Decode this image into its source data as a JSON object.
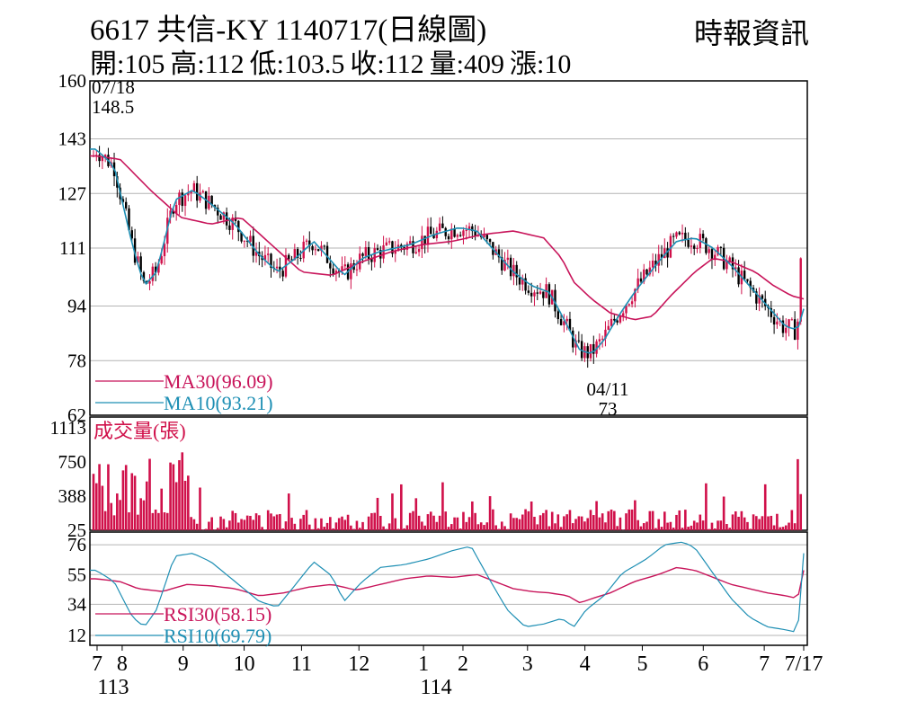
{
  "header": {
    "title": "6617  共信-KY 1140717(日線圖)",
    "source": "時報資訊",
    "quote": [
      {
        "label": "開",
        "value": "105"
      },
      {
        "label": "高",
        "value": "112"
      },
      {
        "label": "低",
        "value": "103.5"
      },
      {
        "label": "收",
        "value": "112"
      },
      {
        "label": "量",
        "value": "409"
      },
      {
        "label": "漲",
        "value": "10"
      }
    ]
  },
  "colors": {
    "up": "#d0104a",
    "down": "#000000",
    "ma30": "#c8145a",
    "ma10": "#1e8fb4",
    "volume": "#d0104a",
    "grid": "#b4b4b4"
  },
  "chart_data": [
    {
      "type": "candlestick",
      "name": "price",
      "ylim": [
        62,
        160
      ],
      "yticks": [
        62,
        78,
        94,
        111,
        127,
        143,
        160
      ],
      "annotations": [
        {
          "date": "07/18",
          "value": 148.5,
          "kind": "high"
        },
        {
          "date": "04/11",
          "value": 73,
          "kind": "low"
        }
      ],
      "series": [
        {
          "name": "MA30",
          "label": "MA30(96.09)",
          "last": 96.09,
          "points": [
            [
              0.01,
              138
            ],
            [
              0.05,
              137
            ],
            [
              0.1,
              128
            ],
            [
              0.15,
              120
            ],
            [
              0.2,
              118
            ],
            [
              0.25,
              120
            ],
            [
              0.3,
              112
            ],
            [
              0.35,
              104
            ],
            [
              0.4,
              103
            ],
            [
              0.45,
              107
            ],
            [
              0.5,
              110
            ],
            [
              0.55,
              112
            ],
            [
              0.6,
              113
            ],
            [
              0.65,
              115
            ],
            [
              0.7,
              116
            ],
            [
              0.75,
              114
            ],
            [
              0.78,
              108
            ],
            [
              0.8,
              101
            ],
            [
              0.83,
              96
            ],
            [
              0.86,
              92
            ],
            [
              0.9,
              90
            ],
            [
              0.93,
              91
            ],
            [
              0.96,
              97
            ],
            [
              1.0,
              104
            ],
            [
              1.03,
              108
            ],
            [
              1.06,
              107
            ],
            [
              1.1,
              104
            ],
            [
              1.13,
              100
            ],
            [
              1.16,
              97
            ],
            [
              1.18,
              96.1
            ]
          ]
        },
        {
          "name": "MA10",
          "label": "MA10(93.21)",
          "last": 93.21,
          "points": [
            [
              0.01,
              140
            ],
            [
              0.04,
              135
            ],
            [
              0.07,
              112
            ],
            [
              0.09,
              100
            ],
            [
              0.11,
              104
            ],
            [
              0.14,
              125
            ],
            [
              0.17,
              128
            ],
            [
              0.2,
              124
            ],
            [
              0.24,
              118
            ],
            [
              0.28,
              109
            ],
            [
              0.31,
              104
            ],
            [
              0.34,
              108
            ],
            [
              0.37,
              113
            ],
            [
              0.4,
              107
            ],
            [
              0.42,
              103
            ],
            [
              0.45,
              108
            ],
            [
              0.48,
              110
            ],
            [
              0.53,
              112
            ],
            [
              0.57,
              115
            ],
            [
              0.61,
              117
            ],
            [
              0.64,
              116
            ],
            [
              0.67,
              110
            ],
            [
              0.7,
              104
            ],
            [
              0.73,
              100
            ],
            [
              0.76,
              98
            ],
            [
              0.79,
              88
            ],
            [
              0.81,
              81
            ],
            [
              0.83,
              80
            ],
            [
              0.85,
              84
            ],
            [
              0.87,
              90
            ],
            [
              0.9,
              98
            ],
            [
              0.94,
              107
            ],
            [
              0.97,
              113
            ],
            [
              1.0,
              114
            ],
            [
              1.03,
              111
            ],
            [
              1.06,
              106
            ],
            [
              1.09,
              100
            ],
            [
              1.12,
              94
            ],
            [
              1.15,
              88
            ],
            [
              1.17,
              87
            ],
            [
              1.18,
              93.2
            ]
          ]
        }
      ]
    },
    {
      "type": "bar",
      "name": "volume",
      "label": "成交量(張)",
      "ylim": [
        25,
        1113
      ],
      "yticks": [
        25,
        388,
        750,
        1113
      ],
      "last": 409
    },
    {
      "type": "line",
      "name": "rsi",
      "ylim": [
        12,
        76
      ],
      "yticks": [
        12,
        34,
        55,
        76
      ],
      "series": [
        {
          "name": "RSI30",
          "label": "RSI30(58.15)",
          "last": 58.15,
          "points": [
            [
              0.01,
              52
            ],
            [
              0.05,
              50
            ],
            [
              0.08,
              45
            ],
            [
              0.12,
              43
            ],
            [
              0.16,
              48
            ],
            [
              0.2,
              47
            ],
            [
              0.24,
              45
            ],
            [
              0.28,
              40
            ],
            [
              0.32,
              42
            ],
            [
              0.36,
              46
            ],
            [
              0.4,
              48
            ],
            [
              0.44,
              44
            ],
            [
              0.47,
              47
            ],
            [
              0.52,
              52
            ],
            [
              0.56,
              54
            ],
            [
              0.6,
              53
            ],
            [
              0.64,
              55
            ],
            [
              0.67,
              50
            ],
            [
              0.7,
              45
            ],
            [
              0.73,
              43
            ],
            [
              0.76,
              42
            ],
            [
              0.79,
              40
            ],
            [
              0.81,
              35
            ],
            [
              0.83,
              38
            ],
            [
              0.86,
              42
            ],
            [
              0.9,
              50
            ],
            [
              0.94,
              55
            ],
            [
              0.97,
              60
            ],
            [
              1.0,
              58
            ],
            [
              1.03,
              53
            ],
            [
              1.06,
              48
            ],
            [
              1.09,
              45
            ],
            [
              1.12,
              42
            ],
            [
              1.15,
              40
            ],
            [
              1.17,
              38
            ],
            [
              1.18,
              58
            ]
          ]
        },
        {
          "name": "RSI10",
          "label": "RSI10(69.79)",
          "last": 69.79,
          "points": [
            [
              0.01,
              58
            ],
            [
              0.04,
              50
            ],
            [
              0.07,
              25
            ],
            [
              0.09,
              18
            ],
            [
              0.11,
              30
            ],
            [
              0.14,
              68
            ],
            [
              0.17,
              70
            ],
            [
              0.2,
              64
            ],
            [
              0.24,
              50
            ],
            [
              0.28,
              36
            ],
            [
              0.31,
              32
            ],
            [
              0.34,
              48
            ],
            [
              0.37,
              64
            ],
            [
              0.4,
              54
            ],
            [
              0.42,
              36
            ],
            [
              0.45,
              50
            ],
            [
              0.48,
              60
            ],
            [
              0.52,
              62
            ],
            [
              0.56,
              66
            ],
            [
              0.6,
              72
            ],
            [
              0.63,
              75
            ],
            [
              0.66,
              52
            ],
            [
              0.69,
              30
            ],
            [
              0.72,
              18
            ],
            [
              0.75,
              20
            ],
            [
              0.78,
              24
            ],
            [
              0.8,
              18
            ],
            [
              0.82,
              30
            ],
            [
              0.85,
              40
            ],
            [
              0.88,
              56
            ],
            [
              0.92,
              66
            ],
            [
              0.95,
              76
            ],
            [
              0.98,
              78
            ],
            [
              1.0,
              74
            ],
            [
              1.03,
              56
            ],
            [
              1.06,
              38
            ],
            [
              1.09,
              25
            ],
            [
              1.12,
              18
            ],
            [
              1.15,
              16
            ],
            [
              1.17,
              14
            ],
            [
              1.18,
              70
            ]
          ]
        }
      ]
    }
  ],
  "xaxis": {
    "ticks": [
      {
        "label": "7",
        "pos": 0.01
      },
      {
        "label": "8",
        "pos": 0.045
      },
      {
        "label": "9",
        "pos": 0.13
      },
      {
        "label": "10",
        "pos": 0.215
      },
      {
        "label": "11",
        "pos": 0.295
      },
      {
        "label": "12",
        "pos": 0.375
      },
      {
        "label": "1",
        "pos": 0.465
      },
      {
        "label": "2",
        "pos": 0.52
      },
      {
        "label": "3",
        "pos": 0.61
      },
      {
        "label": "4",
        "pos": 0.69
      },
      {
        "label": "5",
        "pos": 0.77
      },
      {
        "label": "6",
        "pos": 0.855
      },
      {
        "label": "7",
        "pos": 0.94
      },
      {
        "label": "7/17",
        "pos": 0.995
      }
    ],
    "years": [
      {
        "label": "113",
        "pos": 0.02
      },
      {
        "label": "114",
        "pos": 0.47
      }
    ]
  }
}
